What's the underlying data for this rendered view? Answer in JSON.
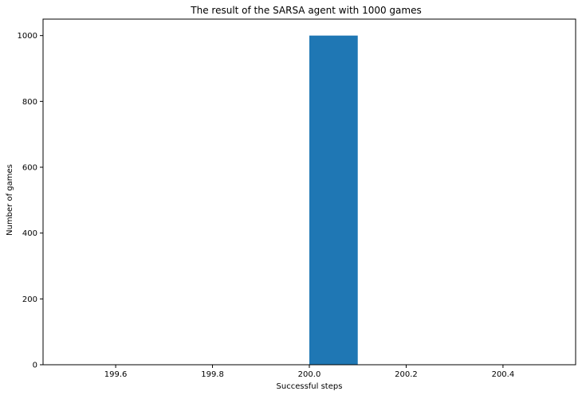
{
  "chart_data": {
    "type": "bar",
    "title": "The result of the SARSA agent with 1000 games",
    "xlabel": "Successful steps",
    "ylabel": "Number of games",
    "xlim": [
      199.45,
      200.55
    ],
    "ylim": [
      0,
      1050
    ],
    "xticks": [
      "199.6",
      "199.8",
      "200.0",
      "200.2",
      "200.4"
    ],
    "xtick_values": [
      199.6,
      199.8,
      200.0,
      200.2,
      200.4
    ],
    "yticks": [
      "0",
      "200",
      "400",
      "600",
      "800",
      "1000"
    ],
    "ytick_values": [
      0,
      200,
      400,
      600,
      800,
      1000
    ],
    "bars": [
      {
        "x0": 200.0,
        "x1": 200.1,
        "value": 1000
      }
    ],
    "bar_color": "#1f77b4",
    "grid": false,
    "legend": "none"
  }
}
